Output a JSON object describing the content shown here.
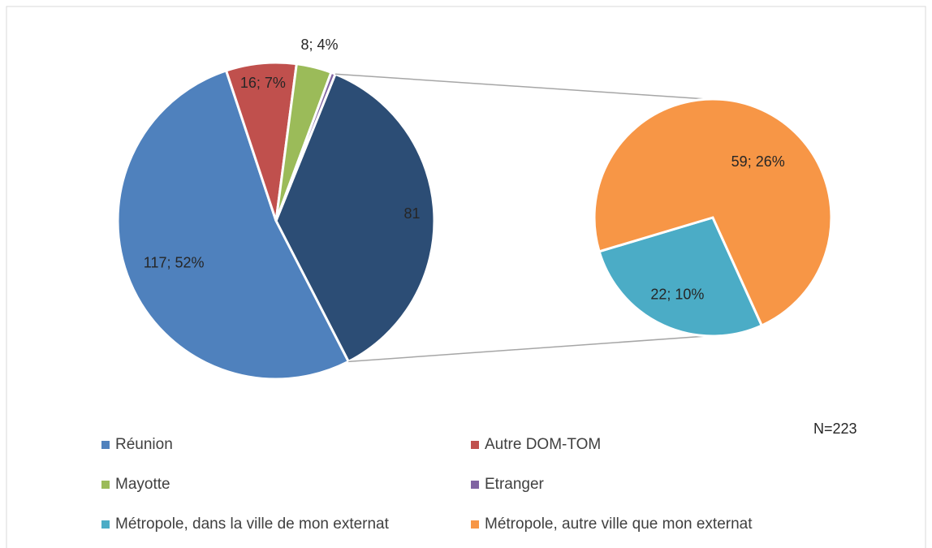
{
  "chart_data": {
    "type": "pie",
    "categories": [
      "Réunion",
      "Autre DOM-TOM",
      "Mayotte",
      "Etranger",
      "Métropole, dans la ville de mon externat",
      "Métropole, autre ville que mon externat"
    ],
    "values": [
      117,
      16,
      8,
      1,
      22,
      59
    ],
    "value_labels": [
      "117; 52%",
      "16; 7%",
      "8; 4%",
      null,
      "22; 10%",
      "59; 26%"
    ],
    "colors": [
      "#4f81bd",
      "#c0504d",
      "#9bbb59",
      "#8064a2",
      "#4bacc6",
      "#f79646"
    ],
    "other_value": 81,
    "other_color": "#2c4d75",
    "annotation": "N=223"
  }
}
